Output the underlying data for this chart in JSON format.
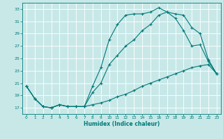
{
  "title": "",
  "xlabel": "Humidex (Indice chaleur)",
  "background_color": "#c8e8e8",
  "grid_color": "#ffffff",
  "line_color": "#007878",
  "xlim": [
    -0.5,
    23.5
  ],
  "ylim": [
    16.0,
    34.0
  ],
  "yticks": [
    17,
    19,
    21,
    23,
    25,
    27,
    29,
    31,
    33
  ],
  "xticks": [
    0,
    1,
    2,
    3,
    4,
    5,
    6,
    7,
    8,
    9,
    10,
    11,
    12,
    13,
    14,
    15,
    16,
    17,
    18,
    19,
    20,
    21,
    22,
    23
  ],
  "line1_x": [
    0,
    1,
    2,
    3,
    4,
    5,
    6,
    7,
    8,
    9,
    10,
    11,
    12,
    13,
    14,
    15,
    16,
    17,
    18,
    19,
    20,
    21,
    22,
    23
  ],
  "line1_y": [
    20.5,
    18.5,
    17.2,
    17.0,
    17.5,
    17.2,
    17.2,
    17.2,
    20.5,
    23.5,
    28.0,
    30.5,
    32.0,
    32.2,
    32.2,
    32.5,
    33.2,
    32.5,
    32.2,
    32.0,
    30.0,
    29.0,
    24.8,
    22.5
  ],
  "line2_x": [
    0,
    1,
    2,
    3,
    4,
    5,
    6,
    7,
    8,
    9,
    10,
    11,
    12,
    13,
    14,
    15,
    16,
    17,
    18,
    19,
    20,
    21,
    22,
    23
  ],
  "line2_y": [
    20.5,
    18.5,
    17.2,
    17.0,
    17.5,
    17.2,
    17.2,
    17.2,
    19.5,
    21.0,
    24.0,
    25.5,
    27.0,
    28.0,
    29.5,
    30.5,
    32.0,
    32.5,
    31.5,
    29.5,
    27.0,
    27.2,
    24.5,
    22.5
  ],
  "line3_x": [
    0,
    1,
    2,
    3,
    4,
    5,
    6,
    7,
    8,
    9,
    10,
    11,
    12,
    13,
    14,
    15,
    16,
    17,
    18,
    19,
    20,
    21,
    22,
    23
  ],
  "line3_y": [
    20.5,
    18.5,
    17.2,
    17.0,
    17.5,
    17.2,
    17.2,
    17.2,
    17.5,
    17.8,
    18.2,
    18.8,
    19.2,
    19.8,
    20.5,
    21.0,
    21.5,
    22.0,
    22.5,
    23.0,
    23.5,
    23.8,
    24.0,
    22.5
  ]
}
